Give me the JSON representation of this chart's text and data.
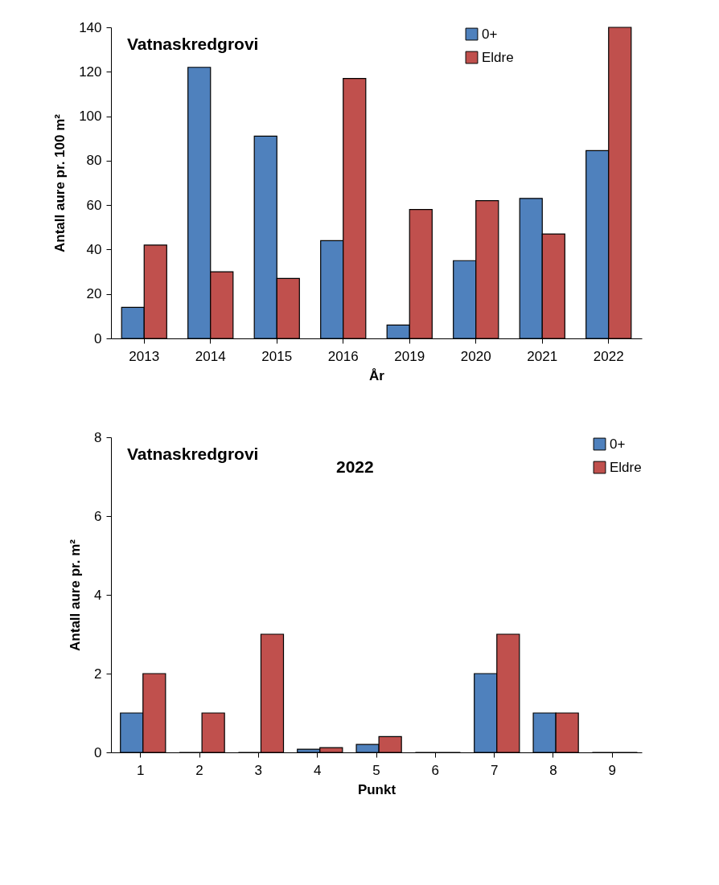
{
  "chart_data": [
    {
      "type": "bar",
      "title": "Vatnaskredgrovi",
      "xlabel": "År",
      "ylabel": "Antall aure pr. 100 m²",
      "categories": [
        "2013",
        "2014",
        "2015",
        "2016",
        "2019",
        "2020",
        "2021",
        "2022"
      ],
      "series": [
        {
          "name": "0+",
          "color": "#4f81bd",
          "values": [
            14,
            122,
            91,
            44,
            6,
            35,
            63,
            84.5
          ]
        },
        {
          "name": "Eldre",
          "color": "#c0504d",
          "values": [
            42,
            30,
            27,
            117,
            58,
            62,
            47,
            140
          ]
        }
      ],
      "ylim": [
        0,
        140
      ],
      "yticks": [
        0,
        20,
        40,
        60,
        80,
        100,
        120,
        140
      ],
      "grid": false,
      "legend": "top right"
    },
    {
      "type": "bar",
      "title": "Vatnaskredgrovi",
      "subtitle": "2022",
      "xlabel": "Punkt",
      "ylabel": "Antall aure pr. m²",
      "categories": [
        "1",
        "2",
        "3",
        "4",
        "5",
        "6",
        "7",
        "8",
        "9"
      ],
      "series": [
        {
          "name": "0+",
          "color": "#4f81bd",
          "values": [
            1,
            0,
            0,
            0.08,
            0.2,
            0,
            2,
            1,
            0
          ]
        },
        {
          "name": "Eldre",
          "color": "#c0504d",
          "values": [
            2,
            1,
            3,
            0.12,
            0.4,
            0,
            3,
            1,
            0
          ]
        }
      ],
      "ylim": [
        0,
        8
      ],
      "yticks": [
        0,
        2,
        4,
        6,
        8
      ],
      "grid": false,
      "legend": "top right"
    }
  ]
}
